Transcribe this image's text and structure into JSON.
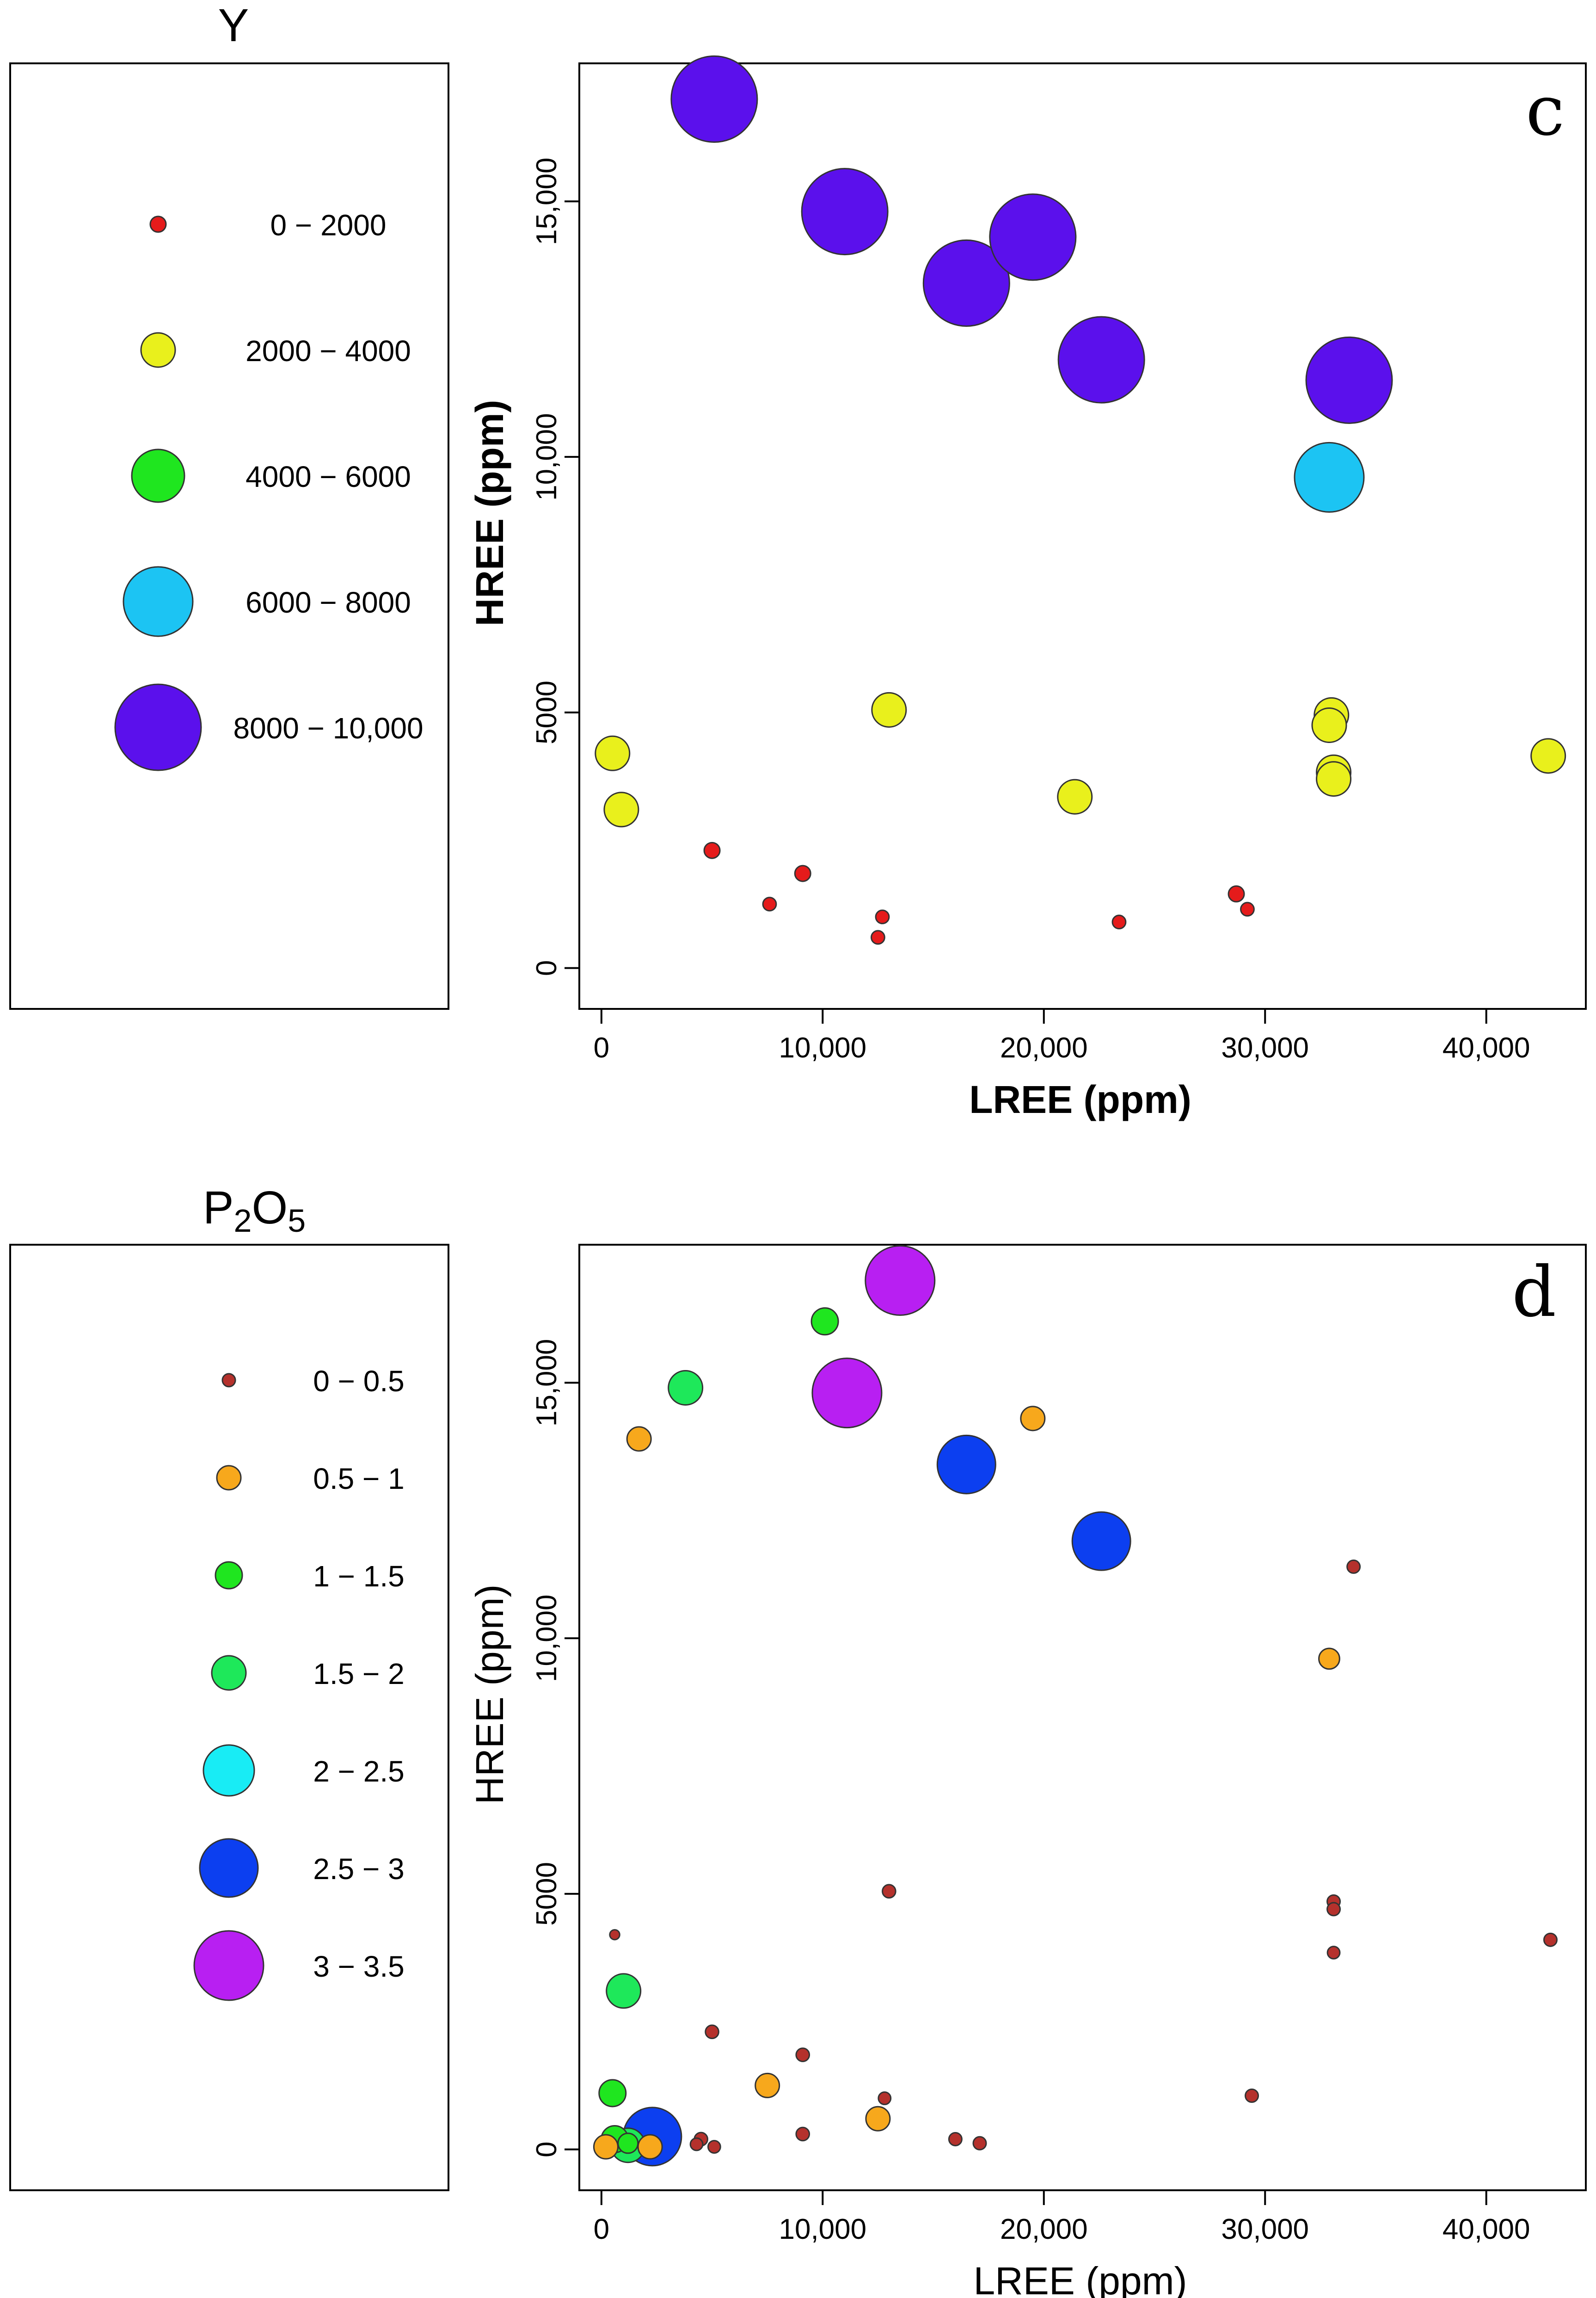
{
  "colors": {
    "red": "#e51b1b",
    "yellow": "#e9f01c",
    "green": "#1fe61f",
    "green2": "#1ee85a",
    "cyan": "#1cc4f3",
    "cyan2": "#18ecf5",
    "purple": "#5b10ec",
    "orange": "#f7a81c",
    "blue": "#0c3ff0",
    "magenta": "#b81ff2",
    "darkred": "#b5312c"
  },
  "legend_c": {
    "title": "Y",
    "items": [
      {
        "label": "0 − 2000",
        "color": "#e51b1b",
        "size": 1
      },
      {
        "label": "2000 − 4000",
        "color": "#e9f01c",
        "size": 2
      },
      {
        "label": "4000 − 6000",
        "color": "#1fe61f",
        "size": 3
      },
      {
        "label": "6000 − 8000",
        "color": "#1cc4f3",
        "size": 4
      },
      {
        "label": "8000 − 10,000",
        "color": "#5b10ec",
        "size": 5
      }
    ]
  },
  "legend_d": {
    "title_main": "P",
    "title_sub1": "2",
    "title_mid": "O",
    "title_sub2": "5",
    "items": [
      {
        "label": "0 − 0.5",
        "color": "#b5312c",
        "size": 1
      },
      {
        "label": "0.5 − 1",
        "color": "#f7a81c",
        "size": 2
      },
      {
        "label": "1 − 1.5",
        "color": "#1fe61f",
        "size": 3
      },
      {
        "label": "1.5 − 2",
        "color": "#1ee85a",
        "size": 4
      },
      {
        "label": "2 − 2.5",
        "color": "#18ecf5",
        "size": 5
      },
      {
        "label": "2.5 − 3",
        "color": "#0c3ff0",
        "size": 6
      },
      {
        "label": "3 − 3.5",
        "color": "#b81ff2",
        "size": 7
      }
    ]
  },
  "chart_data": [
    {
      "type": "scatter",
      "panel": "c",
      "title": "",
      "xlabel": "LREE (ppm)",
      "ylabel": "HREE (ppm)",
      "xlim": [
        -1000,
        44500
      ],
      "ylim": [
        -800,
        17700
      ],
      "xticks": [
        0,
        10000,
        20000,
        30000,
        40000
      ],
      "xtick_labels": [
        "0",
        "10,000",
        "20,000",
        "30,000",
        "40,000"
      ],
      "yticks": [
        0,
        5000,
        10000,
        15000
      ],
      "ytick_labels": [
        "0",
        "5000",
        "10,000",
        "15,000"
      ],
      "size_variable": "Y",
      "points": [
        {
          "x": 5100,
          "y": 17000,
          "c": "#5b10ec",
          "s": 5
        },
        {
          "x": 11000,
          "y": 14800,
          "c": "#5b10ec",
          "s": 5
        },
        {
          "x": 16500,
          "y": 13400,
          "c": "#5b10ec",
          "s": 5
        },
        {
          "x": 19500,
          "y": 14300,
          "c": "#5b10ec",
          "s": 5
        },
        {
          "x": 22600,
          "y": 11900,
          "c": "#5b10ec",
          "s": 5
        },
        {
          "x": 33800,
          "y": 11500,
          "c": "#5b10ec",
          "s": 5
        },
        {
          "x": 32900,
          "y": 9600,
          "c": "#1cc4f3",
          "s": 4
        },
        {
          "x": 13000,
          "y": 5050,
          "c": "#e9f01c",
          "s": 2
        },
        {
          "x": 33000,
          "y": 4950,
          "c": "#e9f01c",
          "s": 2
        },
        {
          "x": 32900,
          "y": 4750,
          "c": "#e9f01c",
          "s": 2
        },
        {
          "x": 33100,
          "y": 3830,
          "c": "#e9f01c",
          "s": 2
        },
        {
          "x": 33100,
          "y": 3700,
          "c": "#e9f01c",
          "s": 2
        },
        {
          "x": 500,
          "y": 4200,
          "c": "#e9f01c",
          "s": 2
        },
        {
          "x": 42800,
          "y": 4150,
          "c": "#e9f01c",
          "s": 2
        },
        {
          "x": 21400,
          "y": 3350,
          "c": "#e9f01c",
          "s": 2
        },
        {
          "x": 900,
          "y": 3100,
          "c": "#e9f01c",
          "s": 2
        },
        {
          "x": 5000,
          "y": 2300,
          "c": "#e51b1b",
          "s": 1
        },
        {
          "x": 9100,
          "y": 1850,
          "c": "#e51b1b",
          "s": 1
        },
        {
          "x": 28700,
          "y": 1450,
          "c": "#e51b1b",
          "s": 1
        },
        {
          "x": 7600,
          "y": 1250,
          "c": "#e51b1b",
          "s": 0.8
        },
        {
          "x": 29200,
          "y": 1150,
          "c": "#e51b1b",
          "s": 0.8
        },
        {
          "x": 12700,
          "y": 1000,
          "c": "#e51b1b",
          "s": 0.8
        },
        {
          "x": 23400,
          "y": 900,
          "c": "#e51b1b",
          "s": 0.8
        },
        {
          "x": 12500,
          "y": 600,
          "c": "#e51b1b",
          "s": 0.8
        }
      ]
    },
    {
      "type": "scatter",
      "panel": "d",
      "title": "",
      "xlabel": "LREE (ppm)",
      "ylabel": "HREE (ppm)",
      "xlim": [
        -1000,
        44500
      ],
      "ylim": [
        -800,
        17700
      ],
      "xticks": [
        0,
        10000,
        20000,
        30000,
        40000
      ],
      "xtick_labels": [
        "0",
        "10,000",
        "20,000",
        "30,000",
        "40,000"
      ],
      "yticks": [
        0,
        5000,
        10000,
        15000
      ],
      "ytick_labels": [
        "0",
        "5000",
        "10,000",
        "15,000"
      ],
      "size_variable": "P2O5",
      "points": [
        {
          "x": 13500,
          "y": 17000,
          "c": "#b81ff2",
          "s": 7
        },
        {
          "x": 11100,
          "y": 14800,
          "c": "#b81ff2",
          "s": 7
        },
        {
          "x": 10100,
          "y": 16200,
          "c": "#1fe61f",
          "s": 3
        },
        {
          "x": 3800,
          "y": 14900,
          "c": "#1ee85a",
          "s": 4
        },
        {
          "x": 1700,
          "y": 13900,
          "c": "#f7a81c",
          "s": 2
        },
        {
          "x": 19500,
          "y": 14300,
          "c": "#f7a81c",
          "s": 2
        },
        {
          "x": 16500,
          "y": 13400,
          "c": "#0c3ff0",
          "s": 6
        },
        {
          "x": 22600,
          "y": 11900,
          "c": "#0c3ff0",
          "s": 6
        },
        {
          "x": 34000,
          "y": 11400,
          "c": "#b5312c",
          "s": 1
        },
        {
          "x": 32900,
          "y": 9600,
          "c": "#f7a81c",
          "s": 1.6
        },
        {
          "x": 13000,
          "y": 5050,
          "c": "#b5312c",
          "s": 0.7
        },
        {
          "x": 33100,
          "y": 4850,
          "c": "#b5312c",
          "s": 1
        },
        {
          "x": 33100,
          "y": 4700,
          "c": "#b5312c",
          "s": 1
        },
        {
          "x": 33100,
          "y": 3850,
          "c": "#b5312c",
          "s": 0.6
        },
        {
          "x": 42900,
          "y": 4100,
          "c": "#b5312c",
          "s": 1
        },
        {
          "x": 600,
          "y": 4200,
          "c": "#b5312c",
          "s": 0.3
        },
        {
          "x": 1000,
          "y": 3100,
          "c": "#1ee85a",
          "s": 4
        },
        {
          "x": 5000,
          "y": 2300,
          "c": "#b5312c",
          "s": 0.7
        },
        {
          "x": 9100,
          "y": 1850,
          "c": "#b5312c",
          "s": 0.7
        },
        {
          "x": 500,
          "y": 1100,
          "c": "#1fe61f",
          "s": 3
        },
        {
          "x": 7500,
          "y": 1250,
          "c": "#f7a81c",
          "s": 2
        },
        {
          "x": 29400,
          "y": 1050,
          "c": "#b5312c",
          "s": 1
        },
        {
          "x": 12800,
          "y": 1000,
          "c": "#b5312c",
          "s": 0.6
        },
        {
          "x": 12500,
          "y": 600,
          "c": "#f7a81c",
          "s": 2
        },
        {
          "x": 9100,
          "y": 300,
          "c": "#b5312c",
          "s": 0.7
        },
        {
          "x": 2300,
          "y": 250,
          "c": "#0c3ff0",
          "s": 6
        },
        {
          "x": 600,
          "y": 200,
          "c": "#1fe61f",
          "s": 3
        },
        {
          "x": 1200,
          "y": 80,
          "c": "#1ee85a",
          "s": 4
        },
        {
          "x": 1200,
          "y": 120,
          "c": "#1fe61f",
          "s": 1.5
        },
        {
          "x": 200,
          "y": 50,
          "c": "#f7a81c",
          "s": 2
        },
        {
          "x": 2200,
          "y": 50,
          "c": "#f7a81c",
          "s": 2
        },
        {
          "x": 16000,
          "y": 200,
          "c": "#b5312c",
          "s": 1
        },
        {
          "x": 17100,
          "y": 120,
          "c": "#b5312c",
          "s": 1
        },
        {
          "x": 4500,
          "y": 200,
          "c": "#b5312c",
          "s": 0.7
        },
        {
          "x": 4300,
          "y": 100,
          "c": "#b5312c",
          "s": 0.6
        },
        {
          "x": 5100,
          "y": 50,
          "c": "#b5312c",
          "s": 0.6
        }
      ]
    }
  ],
  "panels": {
    "c": {
      "letter": "c"
    },
    "d": {
      "letter": "d"
    }
  }
}
